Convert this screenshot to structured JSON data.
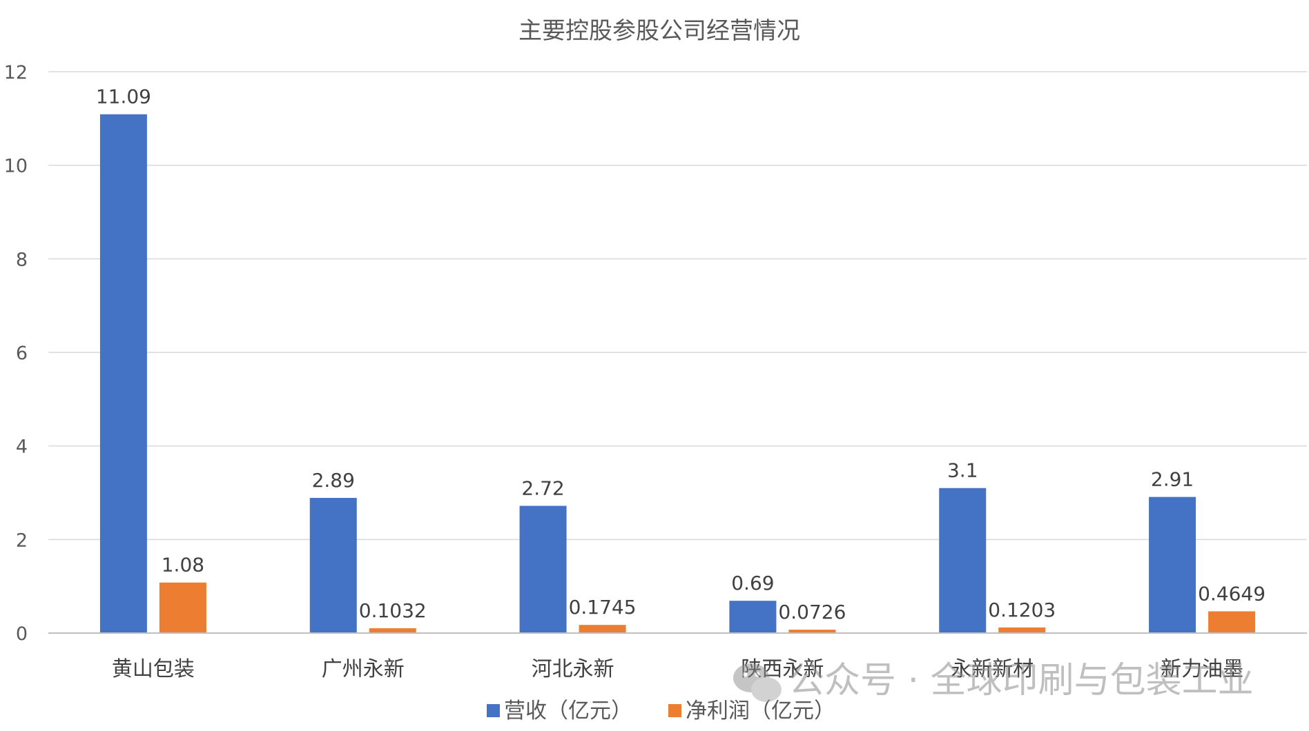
{
  "chart_data": {
    "type": "bar",
    "title": "主要控股参股公司经营情况",
    "categories": [
      "黄山包装",
      "广州永新",
      "河北永新",
      "陕西永新",
      "永新新材",
      "新力油墨"
    ],
    "series": [
      {
        "name": "营收（亿元）",
        "color": "#4472c4",
        "values": [
          11.09,
          2.89,
          2.72,
          0.69,
          3.1,
          2.91
        ],
        "labels": [
          "11.09",
          "2.89",
          "2.72",
          "0.69",
          "3.1",
          "2.91"
        ]
      },
      {
        "name": "净利润（亿元）",
        "color": "#ed7d31",
        "values": [
          1.08,
          0.1032,
          0.1745,
          0.0726,
          0.1203,
          0.4649
        ],
        "labels": [
          "1.08",
          "0.1032",
          "0.1745",
          "0.0726",
          "0.1203",
          "0.4649"
        ]
      }
    ],
    "yticks": [
      "0",
      "2",
      "4",
      "6",
      "8",
      "10",
      "12"
    ],
    "ylim": [
      0,
      12
    ],
    "grid": true,
    "legend": "bottom",
    "xlabel": "",
    "ylabel": ""
  },
  "watermark": {
    "icon": "wechat-icon",
    "text": "公众号 · 全球印刷与包装工业"
  }
}
